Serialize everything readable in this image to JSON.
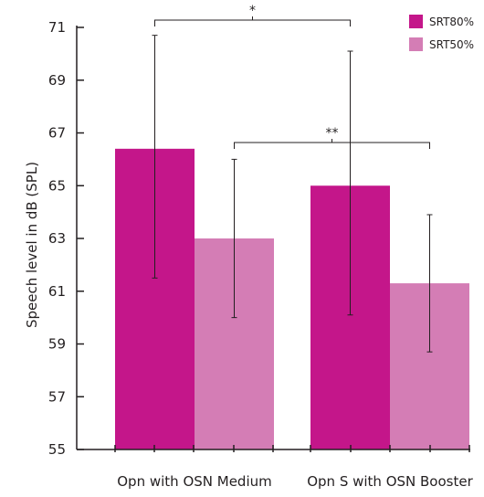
{
  "chart_data": {
    "type": "bar",
    "ylabel": "Speech level in dB (SPL)",
    "ylim": [
      55,
      71
    ],
    "yticks": [
      55,
      57,
      59,
      61,
      63,
      65,
      67,
      69,
      71
    ],
    "categories": [
      "Opn with OSN Medium",
      "Opn S with OSN Booster"
    ],
    "series": [
      {
        "name": "SRT80%",
        "color": "#c4168a",
        "values": [
          66.4,
          65.0
        ],
        "error_low": [
          61.5,
          60.1
        ],
        "error_high": [
          70.7,
          70.1
        ]
      },
      {
        "name": "SRT50%",
        "color": "#d47db5",
        "values": [
          63.0,
          61.3
        ],
        "error_low": [
          60.0,
          58.7
        ],
        "error_high": [
          66.0,
          63.9
        ]
      }
    ],
    "legend_position": "top-right",
    "grid": false,
    "significance": [
      {
        "label": "*",
        "between": "SRT80% bars of both conditions"
      },
      {
        "label": "**",
        "between": "SRT50% bars of both conditions"
      }
    ]
  }
}
